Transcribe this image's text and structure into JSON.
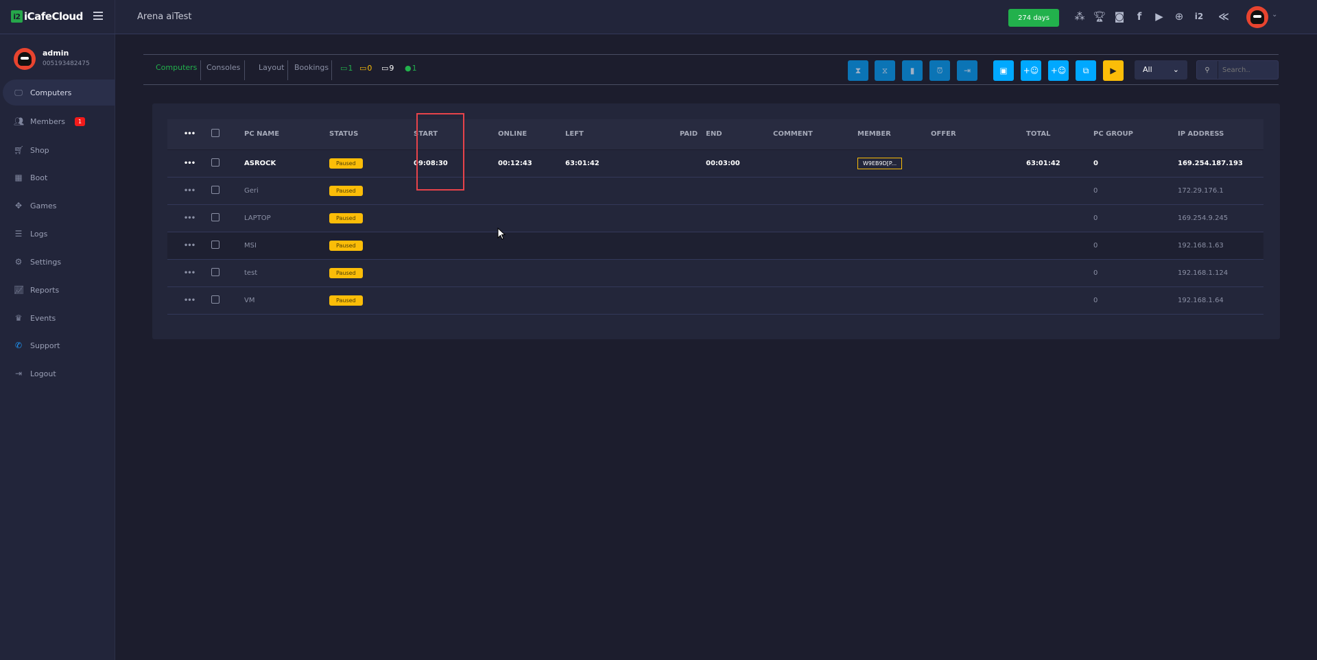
{
  "brand": {
    "name": "iCafeCloud",
    "logo_mark": "i2"
  },
  "header": {
    "title": "Arena aiTest",
    "days_badge": "274 days",
    "icons": [
      "ranking-icon",
      "trophy-icon",
      "discord-icon",
      "facebook-icon",
      "youtube-icon",
      "globe-icon",
      "icafe-icon",
      "brand-icon"
    ]
  },
  "user": {
    "name": "admin",
    "id": "005193482475"
  },
  "sidebar": {
    "items": [
      {
        "label": "Computers",
        "icon": "monitor-icon",
        "active": true
      },
      {
        "label": "Members",
        "icon": "users-icon",
        "badge": "1"
      },
      {
        "label": "Shop",
        "icon": "cart-icon"
      },
      {
        "label": "Boot",
        "icon": "windows-icon"
      },
      {
        "label": "Games",
        "icon": "gamepad-icon"
      },
      {
        "label": "Logs",
        "icon": "list-icon"
      },
      {
        "label": "Settings",
        "icon": "gear-icon"
      },
      {
        "label": "Reports",
        "icon": "chart-icon"
      },
      {
        "label": "Events",
        "icon": "crown-icon"
      },
      {
        "label": "Support",
        "icon": "phone-icon"
      },
      {
        "label": "Logout",
        "icon": "logout-icon"
      }
    ]
  },
  "toolbar": {
    "tabs": [
      "Computers",
      "Consoles",
      "Layout",
      "Bookings"
    ],
    "stats": {
      "online": "1",
      "busy": "0",
      "offline": "9",
      "members": "1"
    },
    "filter": "All",
    "search_placeholder": "Search..",
    "colors": {
      "active": "#22b14c",
      "busy": "#fbbd08",
      "dark_btn": "#0b74b5",
      "light_btn": "#00a8ff"
    }
  },
  "table": {
    "headers": [
      "PC NAME",
      "STATUS",
      "START",
      "ONLINE",
      "LEFT",
      "PAID",
      "END",
      "COMMENT",
      "MEMBER",
      "OFFER",
      "TOTAL",
      "PC GROUP",
      "IP ADDRESS"
    ],
    "rows": [
      {
        "name": "ASROCK",
        "status": "Paused",
        "start": "09:08:30",
        "online": "00:12:43",
        "left": "63:01:42",
        "paid": "",
        "end": "00:03:00",
        "comment": "",
        "member": "W9EB9D[P...",
        "offer": "",
        "total": "63:01:42",
        "group": "0",
        "ip": "169.254.187.193"
      },
      {
        "name": "Geri",
        "status": "Paused",
        "start": "",
        "online": "",
        "left": "",
        "paid": "",
        "end": "",
        "comment": "",
        "member": "",
        "offer": "",
        "total": "",
        "group": "0",
        "ip": "172.29.176.1"
      },
      {
        "name": "LAPTOP",
        "status": "Paused",
        "start": "",
        "online": "",
        "left": "",
        "paid": "",
        "end": "",
        "comment": "",
        "member": "",
        "offer": "",
        "total": "",
        "group": "0",
        "ip": "169.254.9.245"
      },
      {
        "name": "MSI",
        "status": "Paused",
        "start": "",
        "online": "",
        "left": "",
        "paid": "",
        "end": "",
        "comment": "",
        "member": "",
        "offer": "",
        "total": "",
        "group": "0",
        "ip": "192.168.1.63"
      },
      {
        "name": "test",
        "status": "Paused",
        "start": "",
        "online": "",
        "left": "",
        "paid": "",
        "end": "",
        "comment": "",
        "member": "",
        "offer": "",
        "total": "",
        "group": "0",
        "ip": "192.168.1.124"
      },
      {
        "name": "VM",
        "status": "Paused",
        "start": "",
        "online": "",
        "left": "",
        "paid": "",
        "end": "",
        "comment": "",
        "member": "",
        "offer": "",
        "total": "",
        "group": "0",
        "ip": "192.168.1.64"
      }
    ]
  }
}
